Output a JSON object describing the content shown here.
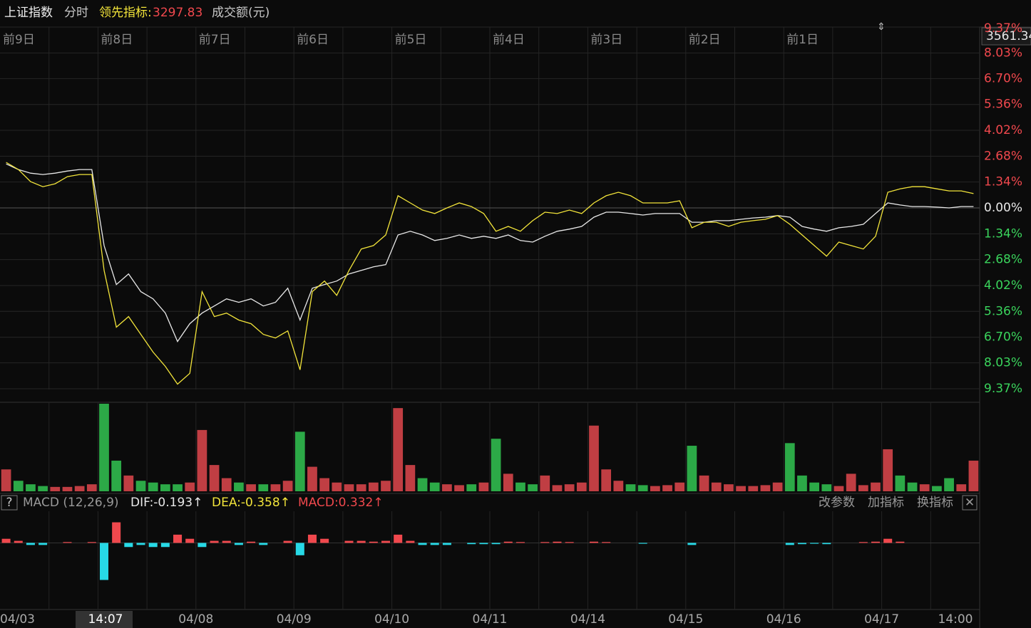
{
  "header": {
    "name": "上证指数",
    "mode": "分时",
    "indicator_label": "领先指标:",
    "indicator_value": "3297.83",
    "volume_label": "成交额(元)"
  },
  "price_tag": "3561.34",
  "day_labels": [
    "前9日",
    "前8日",
    "前7日",
    "前6日",
    "前5日",
    "前4日",
    "前3日",
    "前2日",
    "前1日"
  ],
  "macd_header": {
    "help": "?",
    "name": "MACD (12,26,9)",
    "dif": "DIF:-0.193↑",
    "dea": "DEA:-0.358↑",
    "macd": "MACD:0.332↑"
  },
  "toolbar": [
    "改参数",
    "加指标",
    "换指标"
  ],
  "x_labels": [
    "04/03",
    "14:07",
    "04/08",
    "04/09",
    "04/10",
    "04/11",
    "04/14",
    "04/15",
    "04/16",
    "04/17",
    "14:00"
  ],
  "chart_data": [
    {
      "type": "line",
      "ylim": [
        -9.37,
        9.37
      ],
      "yticks": [
        {
          "value": 9.37,
          "label": "9.37%"
        },
        {
          "value": 8.03,
          "label": "8.03%"
        },
        {
          "value": 6.7,
          "label": "6.70%"
        },
        {
          "value": 5.36,
          "label": "5.36%"
        },
        {
          "value": 4.02,
          "label": "4.02%"
        },
        {
          "value": 2.68,
          "label": "2.68%"
        },
        {
          "value": 1.34,
          "label": "1.34%"
        },
        {
          "value": 0,
          "label": "0.00%"
        },
        {
          "value": -1.34,
          "label": "1.34%"
        },
        {
          "value": -2.68,
          "label": "2.68%"
        },
        {
          "value": -4.02,
          "label": "4.02%"
        },
        {
          "value": -5.36,
          "label": "5.36%"
        },
        {
          "value": -6.7,
          "label": "6.70%"
        },
        {
          "value": -8.03,
          "label": "8.03%"
        },
        {
          "value": -9.37,
          "label": "9.37%"
        }
      ],
      "series": [
        {
          "color": "#e8e8e8",
          "values": [
            2.28,
            1.99,
            1.8,
            1.73,
            1.8,
            1.91,
            1.99,
            1.99,
            -1.95,
            -3.97,
            -3.42,
            -4.34,
            -4.71,
            -5.45,
            -6.92,
            -6.0,
            -5.45,
            -5.08,
            -4.71,
            -4.89,
            -4.71,
            -5.08,
            -4.89,
            -4.16,
            -5.81,
            -4.16,
            -3.97,
            -3.79,
            -3.42,
            -3.24,
            -3.05,
            -2.94,
            -1.4,
            -1.21,
            -1.4,
            -1.69,
            -1.58,
            -1.4,
            -1.58,
            -1.47,
            -1.58,
            -1.4,
            -1.69,
            -1.77,
            -1.47,
            -1.21,
            -1.1,
            -0.96,
            -0.48,
            -0.22,
            -0.22,
            -0.29,
            -0.37,
            -0.29,
            -0.29,
            -0.29,
            -0.74,
            -0.74,
            -0.66,
            -0.66,
            -0.59,
            -0.52,
            -0.48,
            -0.4,
            -0.48,
            -0.96,
            -1.1,
            -1.21,
            -1.03,
            -0.96,
            -0.85,
            -0.29,
            0.26,
            0.15,
            0.07,
            0.07,
            0.04,
            0,
            0.07,
            0.07
          ]
        },
        {
          "color": "#f2e43a",
          "values": [
            2.36,
            1.99,
            1.36,
            1.1,
            1.25,
            1.62,
            1.73,
            1.73,
            -3.24,
            -6.18,
            -5.63,
            -6.55,
            -7.47,
            -8.21,
            -9.13,
            -8.57,
            -4.34,
            -5.63,
            -5.45,
            -5.81,
            -6.0,
            -6.55,
            -6.74,
            -6.37,
            -8.39,
            -4.34,
            -3.79,
            -4.53,
            -3.24,
            -2.13,
            -1.95,
            -1.4,
            0.63,
            0.26,
            -0.11,
            -0.29,
            0,
            0.26,
            0.07,
            -0.29,
            -1.21,
            -0.96,
            -1.21,
            -0.66,
            -0.22,
            -0.29,
            -0.11,
            -0.29,
            0.26,
            0.63,
            0.81,
            0.63,
            0.26,
            0.26,
            0.26,
            0.37,
            -1.03,
            -0.74,
            -0.74,
            -0.96,
            -0.74,
            -0.66,
            -0.59,
            -0.4,
            -0.85,
            -1.4,
            -1.95,
            -2.5,
            -1.77,
            -1.95,
            -2.13,
            -1.47,
            0.81,
            0.99,
            1.1,
            1.1,
            0.99,
            0.88,
            0.88,
            0.74
          ]
        }
      ]
    },
    {
      "type": "bar",
      "ylim": [
        0,
        100
      ],
      "values": [
        25,
        12,
        8,
        6,
        5,
        5,
        6,
        8,
        100,
        35,
        18,
        12,
        10,
        8,
        8,
        10,
        70,
        30,
        15,
        10,
        8,
        8,
        8,
        12,
        68,
        28,
        15,
        10,
        8,
        8,
        10,
        12,
        95,
        30,
        15,
        10,
        8,
        7,
        8,
        10,
        60,
        20,
        10,
        8,
        18,
        7,
        8,
        10,
        75,
        25,
        12,
        8,
        7,
        6,
        7,
        10,
        52,
        18,
        10,
        8,
        6,
        6,
        7,
        10,
        55,
        18,
        10,
        8,
        6,
        20,
        7,
        10,
        48,
        18,
        10,
        8,
        6,
        15,
        8,
        35
      ]
    },
    {
      "type": "bar",
      "ylim": [
        -1.6,
        0.7
      ],
      "values": [
        0.1,
        0.05,
        -0.05,
        -0.05,
        0,
        0.02,
        0,
        0.02,
        -0.9,
        0.5,
        -0.1,
        -0.05,
        -0.1,
        -0.1,
        0.2,
        0.1,
        -0.1,
        0.05,
        0.05,
        -0.05,
        0.03,
        -0.05,
        0,
        0.05,
        -0.3,
        0.2,
        0.1,
        0,
        0.05,
        0.05,
        0.03,
        0.05,
        0.2,
        0.05,
        -0.05,
        -0.05,
        -0.05,
        0,
        -0.03,
        -0.03,
        -0.03,
        0.03,
        0.02,
        0,
        0.02,
        0.03,
        0.02,
        0,
        0.03,
        0.02,
        0,
        0,
        -0.02,
        0,
        0,
        0,
        -0.05,
        0,
        0,
        0,
        0,
        0,
        0,
        0,
        -0.05,
        -0.03,
        -0.02,
        -0.03,
        0,
        0,
        0.02,
        0.03,
        0.1,
        0.03,
        0,
        0,
        0,
        0,
        0,
        0
      ]
    }
  ]
}
